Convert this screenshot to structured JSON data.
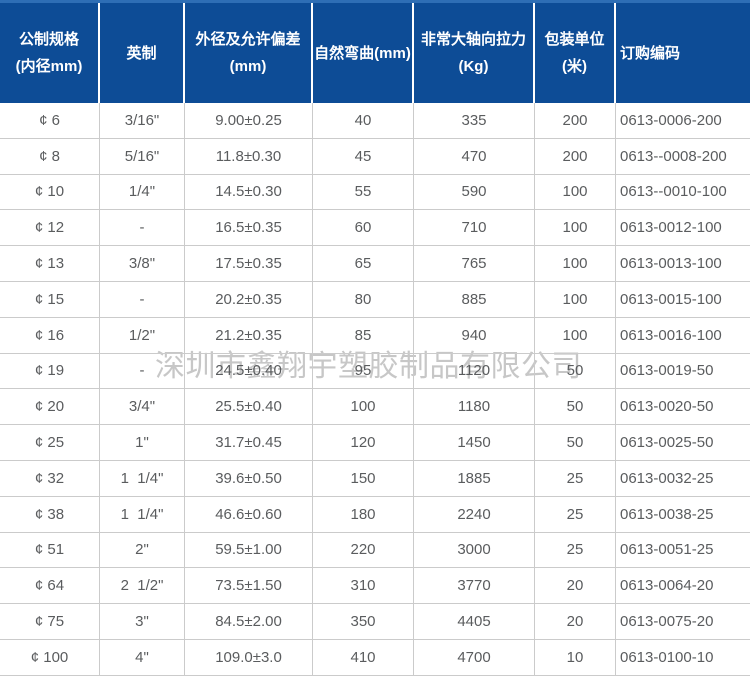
{
  "chart_data": {
    "type": "table",
    "columns": [
      {
        "label": "公制规格\n(内径mm)"
      },
      {
        "label": "英制"
      },
      {
        "label": "外径及允许偏差\n(mm)"
      },
      {
        "label": "自然弯曲(mm)"
      },
      {
        "label": "非常大轴向拉力\n(Kg)"
      },
      {
        "label": "包装单位(米)"
      },
      {
        "label": "订购编码"
      }
    ],
    "rows": [
      [
        "¢ 6",
        "3/16\"",
        "9.00±0.25",
        "40",
        "335",
        "200",
        "0613-0006-200"
      ],
      [
        "¢ 8",
        "5/16\"",
        "11.8±0.30",
        "45",
        "470",
        "200",
        "0613--0008-200"
      ],
      [
        "¢ 10",
        "1/4\"",
        "14.5±0.30",
        "55",
        "590",
        "100",
        "0613--0010-100"
      ],
      [
        "¢ 12",
        "-",
        "16.5±0.35",
        "60",
        "710",
        "100",
        "0613-0012-100"
      ],
      [
        "¢ 13",
        "3/8\"",
        "17.5±0.35",
        "65",
        "765",
        "100",
        "0613-0013-100"
      ],
      [
        "¢ 15",
        "-",
        "20.2±0.35",
        "80",
        "885",
        "100",
        "0613-0015-100"
      ],
      [
        "¢ 16",
        "1/2\"",
        "21.2±0.35",
        "85",
        "940",
        "100",
        "0613-0016-100"
      ],
      [
        "¢ 19",
        "-",
        "24.5±0.40",
        "95",
        "1120",
        "50",
        "0613-0019-50"
      ],
      [
        "¢ 20",
        "3/4\"",
        "25.5±0.40",
        "100",
        "1180",
        "50",
        "0613-0020-50"
      ],
      [
        "¢ 25",
        "1\"",
        "31.7±0.45",
        "120",
        "1450",
        "50",
        "0613-0025-50"
      ],
      [
        "¢ 32",
        "1  1/4\"",
        "39.6±0.50",
        "150",
        "1885",
        "25",
        "0613-0032-25"
      ],
      [
        "¢ 38",
        "1  1/4\"",
        "46.6±0.60",
        "180",
        "2240",
        "25",
        "0613-0038-25"
      ],
      [
        "¢ 51",
        "2\"",
        "59.5±1.00",
        "220",
        "3000",
        "25",
        "0613-0051-25"
      ],
      [
        "¢ 64",
        "2  1/2\"",
        "73.5±1.50",
        "310",
        "3770",
        "20",
        "0613-0064-20"
      ],
      [
        "¢ 75",
        "3\"",
        "84.5±2.00",
        "350",
        "4405",
        "20",
        "0613-0075-20"
      ],
      [
        "¢ 100",
        "4\"",
        "109.0±3.0",
        "410",
        "4700",
        "10",
        "0613-0100-10"
      ]
    ],
    "layout": {
      "header_rows": 1,
      "grid": true,
      "code_column_align": "left"
    }
  },
  "watermark": {
    "text": "深圳市鑫翔宇塑胶制品有限公司"
  },
  "colors": {
    "header_bg": "#0d4c96",
    "header_top_strip": "#2e6eb5",
    "header_text": "#ffffff",
    "grid_border": "#cbcbcb",
    "cell_text": "#5a5c5e",
    "watermark_text": "#c7c7c7"
  }
}
